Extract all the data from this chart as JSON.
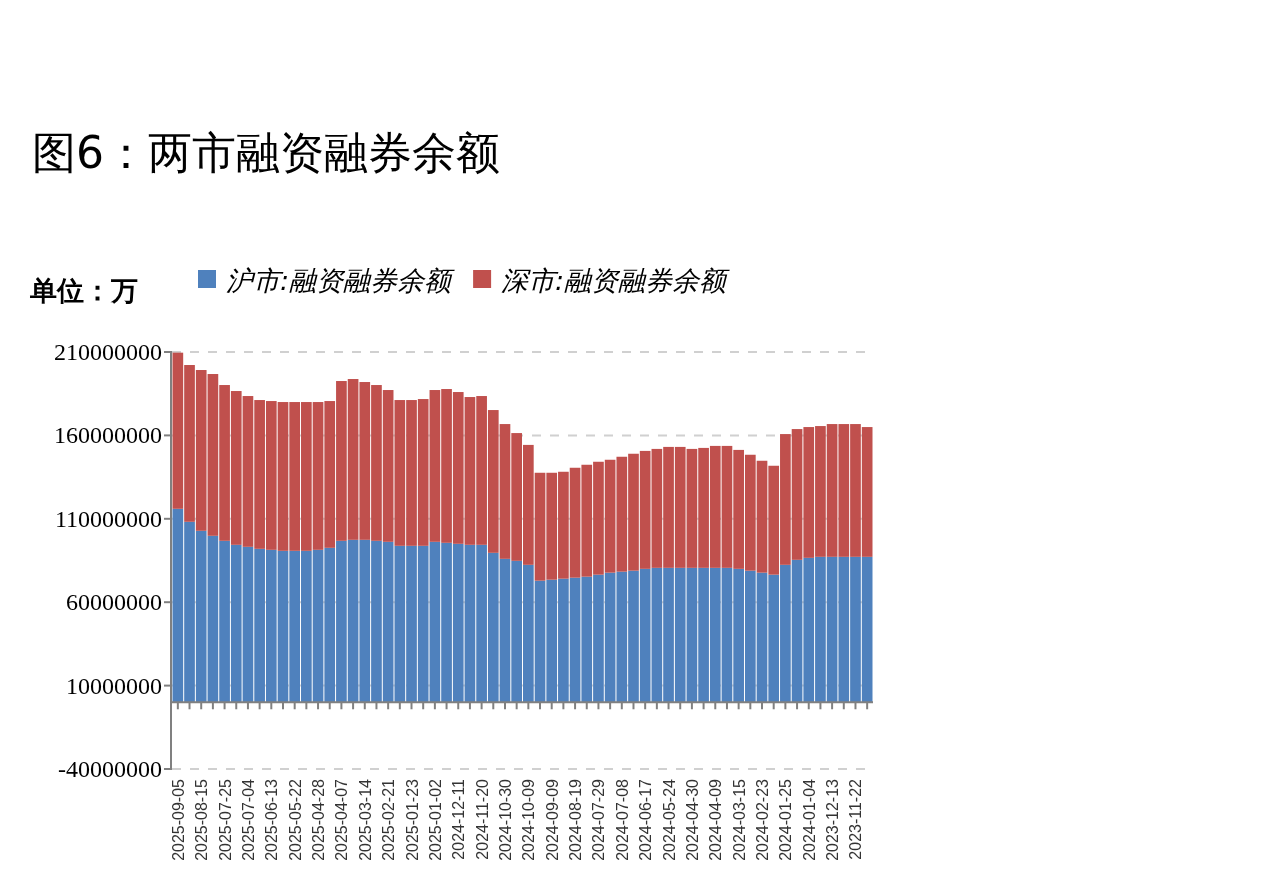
{
  "chart_data": {
    "type": "bar",
    "stacked": true,
    "title": "图6：两市融资融券余额",
    "ylabel": "单位：万",
    "categories": [
      "2025-09-05",
      null,
      "2025-08-15",
      null,
      "2025-07-25",
      null,
      "2025-07-04",
      null,
      "2025-06-13",
      null,
      "2025-05-22",
      null,
      "2025-04-28",
      null,
      "2025-04-07",
      null,
      "2025-03-14",
      null,
      "2025-02-21",
      null,
      "2025-01-23",
      null,
      "2025-01-02",
      null,
      "2024-12-11",
      null,
      "2024-11-20",
      null,
      "2024-10-30",
      null,
      "2024-10-09",
      null,
      "2024-09-09",
      null,
      "2024-08-19",
      null,
      "2024-07-29",
      null,
      "2024-07-08",
      null,
      "2024-06-17",
      null,
      "2024-05-24",
      null,
      "2024-04-30",
      null,
      "2024-04-09",
      null,
      "2024-03-15",
      null,
      "2024-02-23",
      null,
      "2024-01-25",
      null,
      "2024-01-04",
      null,
      "2023-12-13",
      null,
      "2023-11-22",
      null
    ],
    "series": [
      {
        "name": "沪市:融资融券余额",
        "color": "#4f81bd",
        "values": [
          116000000,
          108200000,
          102800000,
          99800000,
          96800000,
          94400000,
          93200000,
          92000000,
          91400000,
          90800000,
          90800000,
          90800000,
          91400000,
          92600000,
          96800000,
          97400000,
          97400000,
          96800000,
          96200000,
          93800000,
          93800000,
          93800000,
          96200000,
          95600000,
          95000000,
          94400000,
          94400000,
          89600000,
          86000000,
          84800000,
          82400000,
          72900000,
          73500000,
          74100000,
          74700000,
          75300000,
          76500000,
          77700000,
          78300000,
          78900000,
          80000000,
          80600000,
          80600000,
          80600000,
          80600000,
          80600000,
          80600000,
          80600000,
          80000000,
          78900000,
          77700000,
          76500000,
          82400000,
          85400000,
          86600000,
          87200000,
          87200000,
          87200000,
          87200000,
          87200000
        ]
      },
      {
        "name": "深市:融资融券余额",
        "color": "#c0504d",
        "values": [
          93600000,
          94000000,
          96400000,
          97000000,
          93400000,
          92200000,
          90400000,
          89200000,
          89200000,
          89200000,
          89200000,
          89200000,
          88600000,
          88000000,
          95800000,
          96400000,
          94600000,
          93400000,
          91000000,
          87400000,
          87400000,
          88000000,
          91000000,
          92200000,
          91000000,
          88600000,
          89200000,
          85600000,
          80800000,
          76600000,
          71900000,
          64700000,
          64100000,
          64100000,
          65900000,
          67100000,
          67700000,
          67700000,
          68900000,
          70100000,
          70700000,
          71300000,
          72500000,
          72500000,
          71300000,
          71900000,
          73100000,
          73100000,
          71300000,
          69500000,
          67100000,
          65300000,
          78400000,
          78400000,
          78400000,
          78400000,
          79600000,
          79600000,
          79600000,
          77800000
        ]
      }
    ],
    "ylim": [
      -40000000,
      210000000
    ],
    "yticks": [
      -40000000,
      10000000,
      60000000,
      110000000,
      160000000,
      210000000
    ],
    "grid": "y",
    "legend": "top"
  }
}
